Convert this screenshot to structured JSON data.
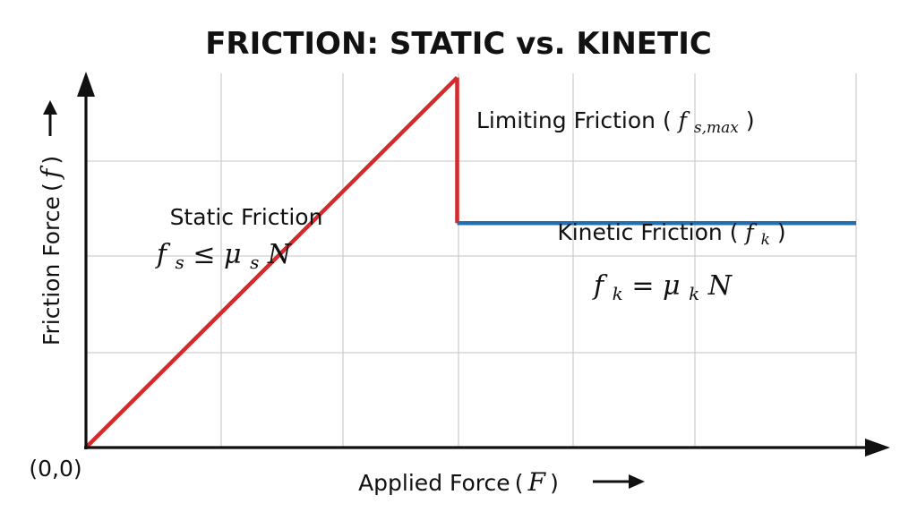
{
  "chart_data": {
    "type": "line",
    "title": "FRICTION: STATIC vs. KINETIC",
    "xlabel": "Applied Force",
    "xlabel_symbol": "F",
    "ylabel": "Friction Force",
    "ylabel_symbol": "f",
    "origin_label": "(0,0)",
    "grid": true,
    "xlim": [
      0,
      1
    ],
    "ylim": [
      0,
      1
    ],
    "series": [
      {
        "name": "Static Friction",
        "color": "#d42a2a",
        "x": [
          0,
          0.482
        ],
        "y": [
          0,
          0.989
        ]
      },
      {
        "name": "Limiting Friction",
        "color": "#d42a2a",
        "x": [
          0.482,
          0.482
        ],
        "y": [
          0.989,
          0.6
        ]
      },
      {
        "name": "Kinetic Friction",
        "color": "#1f6fb2",
        "x": [
          0.482,
          1.0
        ],
        "y": [
          0.6,
          0.6
        ]
      }
    ],
    "annotations": {
      "static_label": "Static Friction",
      "static_formula": {
        "f": "f",
        "sub": "s",
        "op": " ≤ ",
        "mu": "μ",
        "musub": "s",
        "n": "N"
      },
      "limiting_label": "Limiting Friction (",
      "limiting_symbol": "f",
      "limiting_sub": "s,max",
      "limiting_close": ")",
      "kinetic_label": "Kinetic Friction (",
      "kinetic_symbol": "f",
      "kinetic_sub": "k",
      "kinetic_close": ")",
      "kinetic_formula": {
        "f": "f",
        "sub": "k",
        "op": " = ",
        "mu": "μ",
        "musub": "k",
        "n": "N"
      }
    }
  }
}
